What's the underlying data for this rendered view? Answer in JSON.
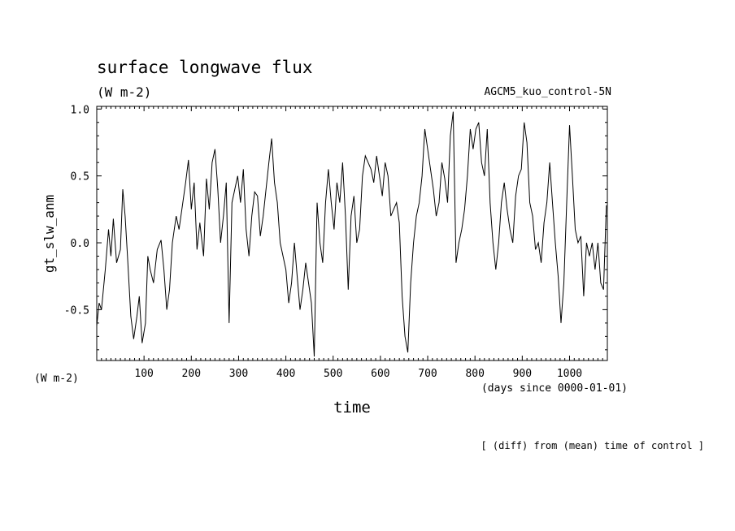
{
  "chart_data": {
    "type": "line",
    "title": "surface longwave flux",
    "units": "(W m-2)",
    "experiment": "AGCM5_kuo_control-5N",
    "ylabel": "gt_slw_anm",
    "yunits": "(W m-2)",
    "xlabel": "time",
    "xunits": "(days since 0000-01-01)",
    "footnote": "[ (diff) from (mean) time of control ]",
    "xlim": [
      0,
      1080
    ],
    "ylim": [
      -0.88,
      1.02
    ],
    "xticks": [
      100,
      200,
      300,
      400,
      500,
      600,
      700,
      800,
      900,
      1000
    ],
    "xtick_labels": [
      "100",
      "200",
      "300",
      "400",
      "500",
      "600",
      "700",
      "800",
      "900",
      "1000"
    ],
    "yticks": [
      -0.5,
      0.0,
      0.5,
      1.0
    ],
    "ytick_labels": [
      "-0.5",
      "0.0",
      "0.5",
      "1.0"
    ],
    "series": [
      {
        "points": [
          [
            0,
            -0.62
          ],
          [
            5,
            -0.45
          ],
          [
            10,
            -0.5
          ],
          [
            18,
            -0.2
          ],
          [
            25,
            0.1
          ],
          [
            30,
            -0.1
          ],
          [
            35,
            0.18
          ],
          [
            42,
            -0.15
          ],
          [
            50,
            -0.05
          ],
          [
            55,
            0.4
          ],
          [
            60,
            0.2
          ],
          [
            65,
            -0.1
          ],
          [
            72,
            -0.55
          ],
          [
            78,
            -0.72
          ],
          [
            85,
            -0.55
          ],
          [
            90,
            -0.4
          ],
          [
            96,
            -0.75
          ],
          [
            103,
            -0.6
          ],
          [
            108,
            -0.1
          ],
          [
            113,
            -0.2
          ],
          [
            120,
            -0.3
          ],
          [
            128,
            -0.05
          ],
          [
            136,
            0.02
          ],
          [
            142,
            -0.2
          ],
          [
            148,
            -0.5
          ],
          [
            154,
            -0.35
          ],
          [
            160,
            0.0
          ],
          [
            168,
            0.2
          ],
          [
            174,
            0.1
          ],
          [
            180,
            0.25
          ],
          [
            188,
            0.45
          ],
          [
            194,
            0.62
          ],
          [
            200,
            0.25
          ],
          [
            206,
            0.45
          ],
          [
            212,
            -0.05
          ],
          [
            218,
            0.15
          ],
          [
            226,
            -0.1
          ],
          [
            232,
            0.48
          ],
          [
            238,
            0.25
          ],
          [
            244,
            0.6
          ],
          [
            250,
            0.7
          ],
          [
            256,
            0.4
          ],
          [
            262,
            0.0
          ],
          [
            268,
            0.2
          ],
          [
            274,
            0.45
          ],
          [
            280,
            -0.6
          ],
          [
            286,
            0.3
          ],
          [
            292,
            0.4
          ],
          [
            298,
            0.5
          ],
          [
            304,
            0.3
          ],
          [
            310,
            0.55
          ],
          [
            316,
            0.1
          ],
          [
            322,
            -0.1
          ],
          [
            328,
            0.2
          ],
          [
            334,
            0.38
          ],
          [
            340,
            0.35
          ],
          [
            346,
            0.05
          ],
          [
            352,
            0.2
          ],
          [
            358,
            0.4
          ],
          [
            364,
            0.6
          ],
          [
            370,
            0.78
          ],
          [
            376,
            0.45
          ],
          [
            382,
            0.3
          ],
          [
            388,
            0.0
          ],
          [
            394,
            -0.1
          ],
          [
            400,
            -0.2
          ],
          [
            406,
            -0.45
          ],
          [
            412,
            -0.3
          ],
          [
            418,
            0.0
          ],
          [
            424,
            -0.25
          ],
          [
            430,
            -0.5
          ],
          [
            436,
            -0.35
          ],
          [
            442,
            -0.15
          ],
          [
            448,
            -0.3
          ],
          [
            454,
            -0.45
          ],
          [
            460,
            -0.85
          ],
          [
            466,
            0.3
          ],
          [
            472,
            0.0
          ],
          [
            478,
            -0.15
          ],
          [
            484,
            0.3
          ],
          [
            490,
            0.55
          ],
          [
            496,
            0.3
          ],
          [
            502,
            0.1
          ],
          [
            508,
            0.45
          ],
          [
            514,
            0.3
          ],
          [
            520,
            0.6
          ],
          [
            526,
            0.2
          ],
          [
            532,
            -0.35
          ],
          [
            538,
            0.2
          ],
          [
            544,
            0.35
          ],
          [
            550,
            0.0
          ],
          [
            556,
            0.1
          ],
          [
            562,
            0.5
          ],
          [
            568,
            0.65
          ],
          [
            574,
            0.6
          ],
          [
            580,
            0.55
          ],
          [
            586,
            0.45
          ],
          [
            592,
            0.65
          ],
          [
            598,
            0.5
          ],
          [
            604,
            0.35
          ],
          [
            610,
            0.6
          ],
          [
            616,
            0.5
          ],
          [
            622,
            0.2
          ],
          [
            628,
            0.25
          ],
          [
            634,
            0.3
          ],
          [
            640,
            0.15
          ],
          [
            646,
            -0.4
          ],
          [
            652,
            -0.7
          ],
          [
            658,
            -0.82
          ],
          [
            664,
            -0.3
          ],
          [
            670,
            0.0
          ],
          [
            676,
            0.2
          ],
          [
            682,
            0.3
          ],
          [
            688,
            0.5
          ],
          [
            694,
            0.85
          ],
          [
            700,
            0.7
          ],
          [
            706,
            0.55
          ],
          [
            712,
            0.4
          ],
          [
            718,
            0.2
          ],
          [
            724,
            0.3
          ],
          [
            730,
            0.6
          ],
          [
            736,
            0.48
          ],
          [
            742,
            0.3
          ],
          [
            748,
            0.8
          ],
          [
            754,
            0.98
          ],
          [
            760,
            -0.15
          ],
          [
            766,
            0.0
          ],
          [
            772,
            0.1
          ],
          [
            778,
            0.25
          ],
          [
            784,
            0.5
          ],
          [
            790,
            0.85
          ],
          [
            796,
            0.7
          ],
          [
            802,
            0.85
          ],
          [
            808,
            0.9
          ],
          [
            814,
            0.6
          ],
          [
            820,
            0.5
          ],
          [
            826,
            0.85
          ],
          [
            832,
            0.3
          ],
          [
            838,
            0.0
          ],
          [
            844,
            -0.2
          ],
          [
            850,
            0.0
          ],
          [
            856,
            0.3
          ],
          [
            862,
            0.45
          ],
          [
            868,
            0.25
          ],
          [
            874,
            0.1
          ],
          [
            880,
            0.0
          ],
          [
            886,
            0.35
          ],
          [
            892,
            0.5
          ],
          [
            898,
            0.55
          ],
          [
            904,
            0.9
          ],
          [
            910,
            0.75
          ],
          [
            916,
            0.3
          ],
          [
            922,
            0.2
          ],
          [
            928,
            -0.05
          ],
          [
            934,
            0.0
          ],
          [
            940,
            -0.15
          ],
          [
            946,
            0.15
          ],
          [
            952,
            0.3
          ],
          [
            958,
            0.6
          ],
          [
            964,
            0.3
          ],
          [
            970,
            0.0
          ],
          [
            976,
            -0.25
          ],
          [
            982,
            -0.6
          ],
          [
            988,
            -0.3
          ],
          [
            994,
            0.3
          ],
          [
            1000,
            0.88
          ],
          [
            1006,
            0.5
          ],
          [
            1012,
            0.1
          ],
          [
            1018,
            0.0
          ],
          [
            1024,
            0.05
          ],
          [
            1030,
            -0.4
          ],
          [
            1036,
            0.0
          ],
          [
            1042,
            -0.1
          ],
          [
            1048,
            0.0
          ],
          [
            1054,
            -0.2
          ],
          [
            1060,
            0.0
          ],
          [
            1066,
            -0.3
          ],
          [
            1072,
            -0.35
          ],
          [
            1078,
            0.28
          ]
        ]
      }
    ]
  }
}
